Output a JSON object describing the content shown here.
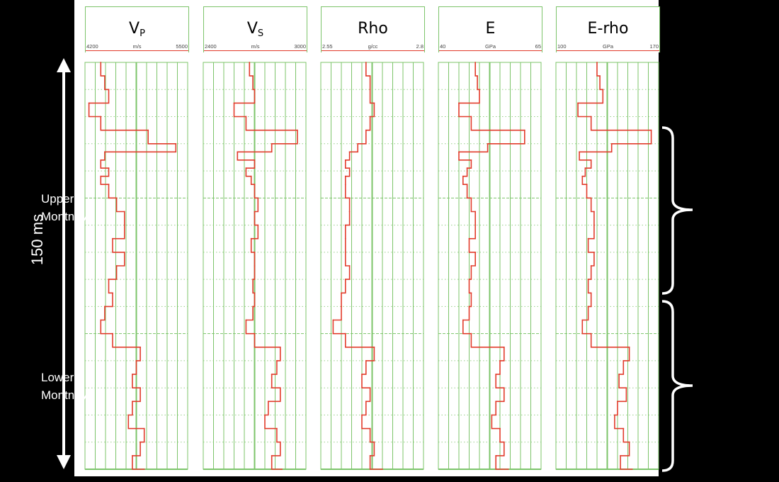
{
  "depth_label": "150 ms",
  "zones": [
    {
      "name": "Upper\nMontney"
    },
    {
      "name": "Lower\nMontney"
    }
  ],
  "colors": {
    "curve": "#e23b2b",
    "grid": "#7cc46a",
    "background": "#000000",
    "annotation": "#ffffff"
  },
  "chart_data": {
    "type": "line",
    "y_axis": {
      "label": "150 ms",
      "range_ms": [
        0,
        150
      ],
      "direction": "down"
    },
    "grid": true,
    "tracks": [
      {
        "title": "V",
        "subscript": "P",
        "unit": "m/s",
        "min_label": "4200",
        "max_label": "5500",
        "xlim": [
          4200,
          5500
        ],
        "samples_ms": [
          0,
          5,
          10,
          15,
          20,
          25,
          30,
          33,
          36,
          39,
          42,
          45,
          50,
          55,
          60,
          65,
          70,
          75,
          80,
          85,
          90,
          95,
          100,
          105,
          110,
          115,
          120,
          125,
          130,
          135,
          140,
          145,
          150
        ],
        "values": [
          4400,
          4450,
          4500,
          4250,
          4400,
          5000,
          5350,
          4450,
          4400,
          4500,
          4400,
          4500,
          4600,
          4700,
          4700,
          4550,
          4700,
          4600,
          4500,
          4550,
          4450,
          4400,
          4550,
          4900,
          4850,
          4800,
          4900,
          4800,
          4750,
          4950,
          4900,
          4800,
          4950
        ]
      },
      {
        "title": "V",
        "subscript": "S",
        "unit": "m/s",
        "min_label": "2400",
        "max_label": "3000",
        "xlim": [
          2400,
          3000
        ],
        "samples_ms": [
          0,
          5,
          10,
          15,
          20,
          25,
          30,
          33,
          36,
          39,
          42,
          45,
          50,
          55,
          60,
          65,
          70,
          75,
          80,
          85,
          90,
          95,
          100,
          105,
          110,
          115,
          120,
          125,
          130,
          135,
          140,
          145,
          150
        ],
        "values": [
          2670,
          2690,
          2700,
          2580,
          2650,
          2950,
          2800,
          2600,
          2700,
          2650,
          2680,
          2700,
          2720,
          2700,
          2720,
          2680,
          2700,
          2700,
          2690,
          2700,
          2690,
          2650,
          2700,
          2850,
          2830,
          2800,
          2850,
          2780,
          2760,
          2830,
          2850,
          2800,
          2860
        ]
      },
      {
        "title": "Rho",
        "subscript": "",
        "unit": "g/cc",
        "min_label": "2.55",
        "max_label": "2.8",
        "xlim": [
          2.55,
          2.8
        ],
        "samples_ms": [
          0,
          5,
          10,
          15,
          20,
          25,
          30,
          33,
          36,
          39,
          42,
          45,
          50,
          55,
          60,
          65,
          70,
          75,
          80,
          85,
          90,
          95,
          100,
          105,
          110,
          115,
          120,
          125,
          130,
          135,
          140,
          145,
          150
        ],
        "values": [
          2.66,
          2.67,
          2.67,
          2.68,
          2.67,
          2.66,
          2.64,
          2.62,
          2.61,
          2.62,
          2.61,
          2.61,
          2.62,
          2.62,
          2.61,
          2.61,
          2.61,
          2.62,
          2.61,
          2.6,
          2.6,
          2.58,
          2.61,
          2.68,
          2.66,
          2.65,
          2.67,
          2.66,
          2.65,
          2.67,
          2.68,
          2.67,
          2.7
        ]
      },
      {
        "title": "E",
        "subscript": "",
        "unit": "GPa",
        "min_label": "40",
        "max_label": "65",
        "xlim": [
          40,
          65
        ],
        "samples_ms": [
          0,
          5,
          10,
          15,
          20,
          25,
          30,
          33,
          36,
          39,
          42,
          45,
          50,
          55,
          60,
          65,
          70,
          75,
          80,
          85,
          90,
          95,
          100,
          105,
          110,
          115,
          120,
          125,
          130,
          135,
          140,
          145,
          150
        ],
        "values": [
          49,
          49.5,
          50,
          45,
          48,
          61,
          52,
          45,
          48,
          47,
          46,
          47,
          48,
          49,
          49,
          47.5,
          49,
          48,
          47.5,
          48,
          47.5,
          46,
          48,
          56,
          55,
          54,
          56,
          54,
          53,
          55,
          56,
          54,
          57
        ]
      },
      {
        "title": "E-rho",
        "subscript": "",
        "unit": "GPa",
        "min_label": "100",
        "max_label": "170",
        "xlim": [
          100,
          170
        ],
        "samples_ms": [
          0,
          5,
          10,
          15,
          20,
          25,
          30,
          33,
          36,
          39,
          42,
          45,
          50,
          55,
          60,
          65,
          70,
          75,
          80,
          85,
          90,
          95,
          100,
          105,
          110,
          115,
          120,
          125,
          130,
          135,
          140,
          145,
          150
        ],
        "values": [
          128,
          130,
          132,
          115,
          124,
          165,
          138,
          116,
          124,
          120,
          118,
          121,
          124,
          126,
          126,
          122,
          126,
          124,
          122,
          124,
          122,
          118,
          124,
          150,
          146,
          143,
          148,
          142,
          140,
          146,
          150,
          144,
          152
        ]
      }
    ]
  }
}
